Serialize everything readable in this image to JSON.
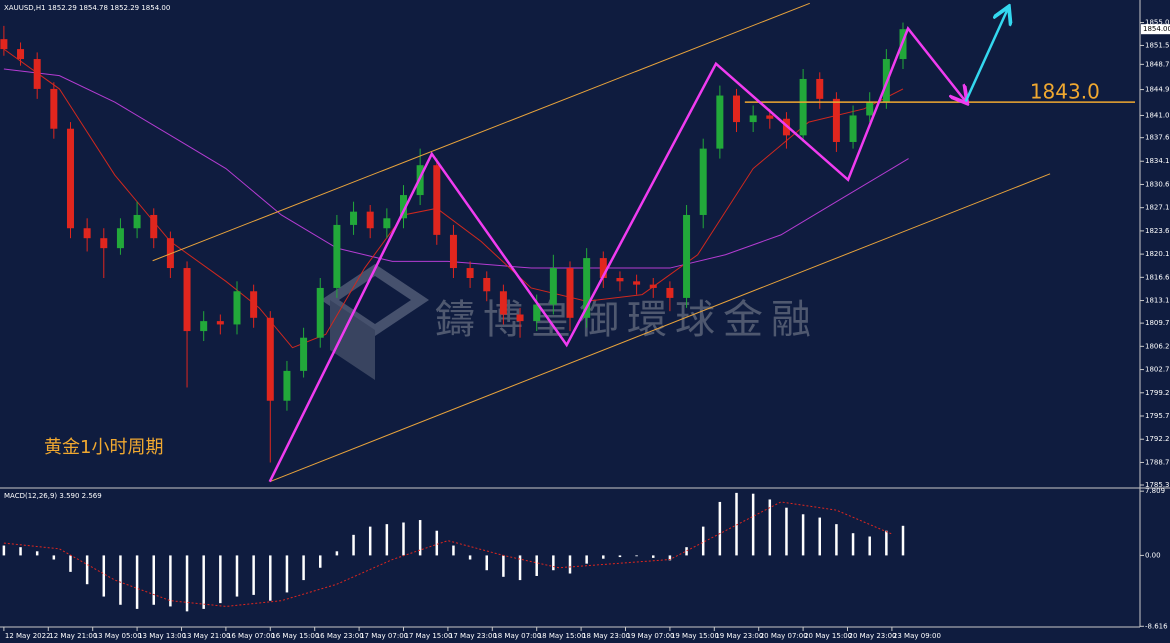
{
  "chart_data": [
    {
      "type": "candlestick",
      "title": "XAUUSD,H1  1852.29 1854.78 1852.29 1854.00",
      "annotation": "黄金1小时周期",
      "watermark": "鑄博皇御環球金融",
      "up_color": "#22a83a",
      "down_color": "#e0261e",
      "xlim": [
        -0.7,
        204.7
      ],
      "ylim": [
        1785.0,
        1858.4
      ],
      "yticks": [
        {
          "value": 1855,
          "label": "1855.00"
        },
        {
          "value": 1851.55,
          "label": "1851.55"
        },
        {
          "value": 1848.7,
          "label": "1848.70"
        },
        {
          "value": 1844.9,
          "label": "1844.90"
        },
        {
          "value": 1841,
          "label": "1841.00"
        },
        {
          "value": 1837.65,
          "label": "1837.65"
        },
        {
          "value": 1834.1,
          "label": "1834.10"
        },
        {
          "value": 1830.6,
          "label": "1830.60"
        },
        {
          "value": 1827.1,
          "label": "1827.10"
        },
        {
          "value": 1823.6,
          "label": "1823.60"
        },
        {
          "value": 1820.1,
          "label": "1820.10"
        },
        {
          "value": 1816.6,
          "label": "1816.60"
        },
        {
          "value": 1813.1,
          "label": "1813.10"
        },
        {
          "value": 1809.7,
          "label": "1809.70"
        },
        {
          "value": 1806.2,
          "label": "1806.20"
        },
        {
          "value": 1802.7,
          "label": "1802.70"
        },
        {
          "value": 1799.2,
          "label": "1799.20"
        },
        {
          "value": 1795.7,
          "label": "1795.70"
        },
        {
          "value": 1792.2,
          "label": "1792.20"
        },
        {
          "value": 1788.7,
          "label": "1788.70"
        },
        {
          "value": 1785.3,
          "label": "1785.30"
        }
      ],
      "current_price": {
        "value": 1854,
        "label": "1854.00"
      },
      "x": [
        0,
        3,
        6,
        9,
        12,
        15,
        18,
        21,
        24,
        27,
        30,
        33,
        36,
        39,
        42,
        45,
        48,
        51,
        54,
        57,
        60,
        63,
        66,
        69,
        72,
        75,
        78,
        81,
        84,
        87,
        90,
        93,
        96,
        99,
        102,
        105,
        108,
        111,
        114,
        117,
        120,
        123,
        126,
        129,
        132,
        135,
        138,
        141,
        144,
        147,
        150,
        153,
        156,
        159,
        162
      ],
      "open": [
        1852.5,
        1851.0,
        1849.5,
        1845.0,
        1839.0,
        1824.0,
        1822.5,
        1821.0,
        1824.0,
        1826.0,
        1822.5,
        1818.0,
        1808.5,
        1810.0,
        1809.5,
        1814.5,
        1810.5,
        1798.0,
        1802.5,
        1807.5,
        1815.0,
        1824.5,
        1826.5,
        1824.0,
        1825.5,
        1829.0,
        1833.5,
        1823.0,
        1818.0,
        1816.5,
        1814.5,
        1811.0,
        1810.0,
        1812.5,
        1818.0,
        1810.5,
        1819.5,
        1816.5,
        1816.0,
        1815.5,
        1815.0,
        1813.5,
        1826.0,
        1836.0,
        1844.0,
        1840.0,
        1841.0,
        1840.5,
        1838.0,
        1846.5,
        1843.5,
        1837.0,
        1841.0,
        1843.0,
        1849.5
      ],
      "high": [
        1854.5,
        1852.0,
        1850.5,
        1846.0,
        1840.0,
        1825.5,
        1824.0,
        1825.5,
        1828.0,
        1827.0,
        1823.5,
        1819.0,
        1811.5,
        1811.0,
        1816.0,
        1815.5,
        1811.5,
        1804.0,
        1809.0,
        1816.5,
        1826.0,
        1828.0,
        1827.5,
        1827.0,
        1830.5,
        1836.0,
        1834.5,
        1824.5,
        1819.0,
        1817.5,
        1815.5,
        1812.0,
        1814.0,
        1820.0,
        1819.0,
        1821.0,
        1820.5,
        1817.5,
        1817.0,
        1816.5,
        1816.0,
        1827.5,
        1837.5,
        1845.5,
        1845.0,
        1842.5,
        1842.0,
        1841.5,
        1848.0,
        1847.5,
        1844.5,
        1842.5,
        1844.5,
        1851.0,
        1855.0
      ],
      "low": [
        1850.0,
        1848.5,
        1843.5,
        1837.5,
        1822.5,
        1820.5,
        1816.5,
        1820.0,
        1822.5,
        1821.0,
        1816.5,
        1800.0,
        1807.0,
        1808.0,
        1808.0,
        1809.0,
        1788.7,
        1796.5,
        1801.5,
        1806.0,
        1813.5,
        1823.0,
        1822.5,
        1822.5,
        1824.0,
        1827.5,
        1821.5,
        1816.5,
        1815.0,
        1813.0,
        1809.5,
        1807.5,
        1808.5,
        1811.0,
        1808.5,
        1809.0,
        1815.0,
        1814.5,
        1814.0,
        1813.5,
        1811.5,
        1812.0,
        1824.0,
        1834.5,
        1838.5,
        1838.5,
        1839.0,
        1836.0,
        1837.0,
        1842.0,
        1835.5,
        1836.0,
        1840.0,
        1842.0,
        1848.0
      ],
      "close": [
        1851.0,
        1849.5,
        1845.0,
        1839.0,
        1824.0,
        1822.5,
        1821.0,
        1824.0,
        1826.0,
        1822.5,
        1818.0,
        1808.5,
        1810.0,
        1809.5,
        1814.5,
        1810.5,
        1798.0,
        1802.5,
        1807.5,
        1815.0,
        1824.5,
        1826.5,
        1824.0,
        1825.5,
        1829.0,
        1833.5,
        1823.0,
        1818.0,
        1816.5,
        1814.5,
        1811.0,
        1810.0,
        1812.5,
        1818.0,
        1810.5,
        1819.5,
        1816.5,
        1816.0,
        1815.5,
        1815.0,
        1813.5,
        1826.0,
        1836.0,
        1844.0,
        1840.0,
        1841.0,
        1840.5,
        1838.0,
        1846.5,
        1843.5,
        1837.0,
        1841.0,
        1843.0,
        1849.5,
        1854.0
      ],
      "ma_fast": {
        "color": "#d0281e",
        "x": [
          0,
          10,
          20,
          30,
          40,
          46,
          52,
          58,
          65,
          72,
          78,
          86,
          95,
          105,
          115,
          125,
          135,
          145,
          155,
          162
        ],
        "values": [
          1851,
          1845,
          1832,
          1822,
          1816,
          1812,
          1806,
          1808,
          1818,
          1826,
          1827,
          1822,
          1815,
          1813,
          1814,
          1820,
          1833,
          1840,
          1842,
          1845
        ]
      },
      "ma_slow": {
        "color": "#b43cd2",
        "x": [
          0,
          10,
          20,
          30,
          40,
          50,
          60,
          70,
          80,
          95,
          110,
          120,
          130,
          140,
          150,
          160,
          163
        ],
        "values": [
          1848,
          1847,
          1843,
          1838,
          1833,
          1826,
          1821,
          1819,
          1819,
          1818,
          1818,
          1818,
          1820,
          1823,
          1828,
          1833,
          1834.5
        ]
      },
      "channel_color": "#e8a33c",
      "channel_upper": {
        "x": [
          26.8,
          145.2
        ],
        "y": [
          1819.1,
          1857.9
        ]
      },
      "channel_lower": {
        "x": [
          47.9,
          188.5
        ],
        "y": [
          1785.8,
          1832.2
        ]
      },
      "zigzag": {
        "color": "#f03cf0",
        "x": [
          47.9,
          77.1,
          101.4,
          128.3,
          152.1,
          162.9,
          173.3
        ],
        "y": [
          1785.8,
          1835.2,
          1806.4,
          1848.8,
          1831.3,
          1854.1,
          1843.1
        ]
      },
      "arrow": {
        "color": "#34d8f0",
        "x": [
          173.3,
          180.9
        ],
        "y": [
          1843.1,
          1857.1
        ]
      },
      "level": {
        "value": 1843.0,
        "label": "1843.0",
        "color": "#f0a830",
        "x": [
          133.5,
          203.8
        ]
      }
    },
    {
      "type": "macd",
      "title": "MACD(12,26,9) 3.590 2.569",
      "xlim": [
        -0.7,
        204.7
      ],
      "ylim": [
        -8.7,
        7.95
      ],
      "yticks": [
        7.809,
        {
          "value": 0,
          "label": "0.00"
        },
        -8.616
      ],
      "x": [
        0,
        3,
        6,
        9,
        12,
        15,
        18,
        21,
        24,
        27,
        30,
        33,
        36,
        39,
        42,
        45,
        48,
        51,
        54,
        57,
        60,
        63,
        66,
        69,
        72,
        75,
        78,
        81,
        84,
        87,
        90,
        93,
        96,
        99,
        102,
        105,
        108,
        111,
        114,
        117,
        120,
        123,
        126,
        129,
        132,
        135,
        138,
        141,
        144,
        147,
        150,
        153,
        156,
        159,
        162
      ],
      "values": [
        1.2,
        1.0,
        0.5,
        -0.5,
        -2.0,
        -3.5,
        -5.0,
        -6.0,
        -6.5,
        -6.0,
        -6.2,
        -6.8,
        -6.5,
        -5.8,
        -5.0,
        -4.8,
        -5.5,
        -4.5,
        -3.0,
        -1.5,
        0.5,
        2.5,
        3.5,
        3.8,
        4.0,
        4.3,
        3.0,
        1.2,
        -0.5,
        -1.8,
        -2.6,
        -3.0,
        -2.5,
        -1.8,
        -2.2,
        -1.0,
        -0.4,
        -0.2,
        -0.1,
        -0.3,
        -0.6,
        1.0,
        3.5,
        6.5,
        7.6,
        7.5,
        6.8,
        5.8,
        5.0,
        4.6,
        3.8,
        2.7,
        2.3,
        3.0,
        3.6
      ],
      "color": "#ffffff",
      "signal": {
        "color": "#e0261e",
        "x": [
          0,
          10,
          20,
          30,
          40,
          50,
          60,
          70,
          80,
          90,
          100,
          110,
          120,
          130,
          140,
          150,
          160
        ],
        "values": [
          1.5,
          0.8,
          -3,
          -5.5,
          -6.2,
          -5.5,
          -3.5,
          -0.5,
          1.8,
          0,
          -1.5,
          -1.0,
          -0.5,
          3,
          6.5,
          5.5,
          2.6
        ]
      },
      "xticks": [
        {
          "value": 0,
          "label": "12 May 2022"
        },
        {
          "value": 8,
          "label": "12 May 21:00"
        },
        {
          "value": 16,
          "label": "13 May 05:00"
        },
        {
          "value": 24,
          "label": "13 May 13:00"
        },
        {
          "value": 32,
          "label": "13 May 21:00"
        },
        {
          "value": 40,
          "label": "16 May 07:00"
        },
        {
          "value": 48,
          "label": "16 May 15:00"
        },
        {
          "value": 56,
          "label": "16 May 23:00"
        },
        {
          "value": 64,
          "label": "17 May 07:00"
        },
        {
          "value": 72,
          "label": "17 May 15:00"
        },
        {
          "value": 80,
          "label": "17 May 23:00"
        },
        {
          "value": 88,
          "label": "18 May 07:00"
        },
        {
          "value": 96,
          "label": "18 May 15:00"
        },
        {
          "value": 104,
          "label": "18 May 23:00"
        },
        {
          "value": 112,
          "label": "19 May 07:00"
        },
        {
          "value": 120,
          "label": "19 May 15:00"
        },
        {
          "value": 128,
          "label": "19 May 23:00"
        },
        {
          "value": 136,
          "label": "20 May 07:00"
        },
        {
          "value": 144,
          "label": "20 May 15:00"
        },
        {
          "value": 152,
          "label": "20 May 23:00"
        },
        {
          "value": 160,
          "label": "23 May 09:00"
        }
      ]
    }
  ]
}
